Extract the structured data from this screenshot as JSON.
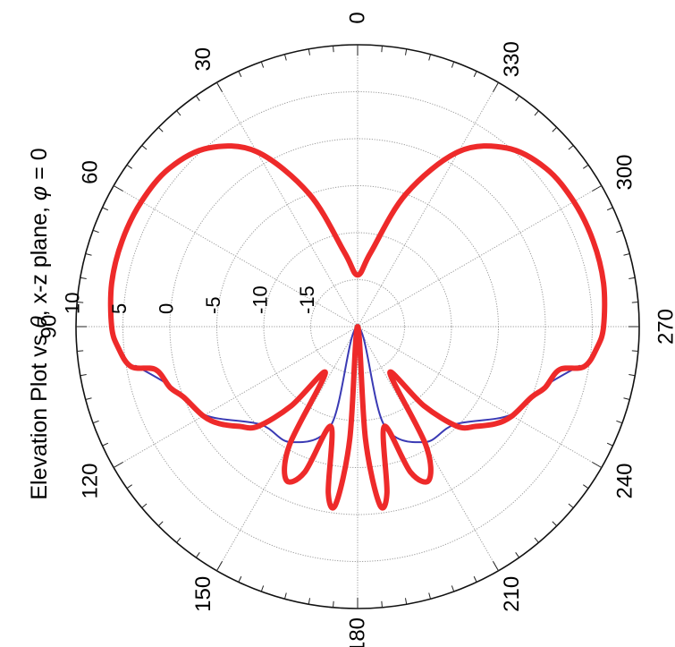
{
  "chart_data": {
    "type": "polar",
    "title": {
      "prefix": "Elevation Plot vs ",
      "theta_symbol": "θ",
      "middle": ",  x-z plane, ",
      "phi_symbol": "φ",
      "suffix": " = 0"
    },
    "angle_ticks": [
      {
        "deg": 0,
        "label": "0"
      },
      {
        "deg": 30,
        "label": "30"
      },
      {
        "deg": 60,
        "label": "60"
      },
      {
        "deg": 90,
        "label": "90"
      },
      {
        "deg": 120,
        "label": "120"
      },
      {
        "deg": 150,
        "label": "150"
      },
      {
        "deg": 180,
        "label": "180"
      },
      {
        "deg": 210,
        "label": "210"
      },
      {
        "deg": 240,
        "label": "240"
      },
      {
        "deg": 270,
        "label": "270"
      },
      {
        "deg": 300,
        "label": "300"
      },
      {
        "deg": 330,
        "label": "330"
      }
    ],
    "radial_ticks": [
      {
        "value": -15,
        "label": "-15"
      },
      {
        "value": -10,
        "label": "-10"
      },
      {
        "value": -5,
        "label": "-5"
      },
      {
        "value": 0,
        "label": "0"
      },
      {
        "value": 5,
        "label": "5"
      },
      {
        "value": 10,
        "label": "10"
      }
    ],
    "rlim": [
      -20,
      10
    ],
    "grid": true,
    "angle_convention": "0 at top, increasing counter-clockwise",
    "series": [
      {
        "color": "#ee2a2a",
        "theta": [
          0,
          10,
          20,
          30,
          40,
          50,
          60,
          70,
          80,
          90,
          95,
          100,
          102,
          108,
          112,
          120,
          125,
          130,
          135,
          140,
          145,
          150,
          155,
          160,
          165,
          170,
          173,
          176,
          180,
          184,
          187,
          190,
          195,
          200,
          205,
          210,
          215,
          220,
          225,
          230,
          235,
          240,
          248,
          252,
          258,
          260,
          265,
          270,
          280,
          290,
          300,
          310,
          320,
          330,
          340,
          350,
          360
        ],
        "r": [
          -14.5,
          -12,
          -5,
          1.5,
          4.8,
          6.2,
          6.6,
          6.7,
          6.6,
          6.2,
          5.6,
          4.5,
          2.0,
          1.0,
          0.0,
          -1.0,
          -2.0,
          -3.5,
          -5.0,
          -9.0,
          -14.0,
          -5.5,
          -2.0,
          -3.5,
          -9.0,
          -2.0,
          -1.0,
          -8.0,
          -20.0,
          -8.0,
          -1.0,
          -2.0,
          -9.0,
          -3.5,
          -2.0,
          -5.5,
          -14.0,
          -9.0,
          -5.0,
          -3.5,
          -2.0,
          -1.0,
          0.0,
          1.0,
          2.0,
          4.5,
          5.6,
          6.2,
          6.6,
          6.7,
          6.6,
          6.2,
          4.8,
          1.5,
          -5.0,
          -12.0,
          -14.5
        ]
      },
      {
        "color": "#3a3ab4",
        "theta": [
          100,
          108,
          120,
          135,
          150,
          165,
          180,
          195,
          210,
          225,
          240,
          252,
          260
        ],
        "r": [
          4.0,
          0.8,
          -1.2,
          -5.3,
          -5.8,
          -9.2,
          -20.0,
          -9.2,
          -5.8,
          -5.3,
          -1.2,
          0.8,
          4.0
        ]
      }
    ]
  }
}
